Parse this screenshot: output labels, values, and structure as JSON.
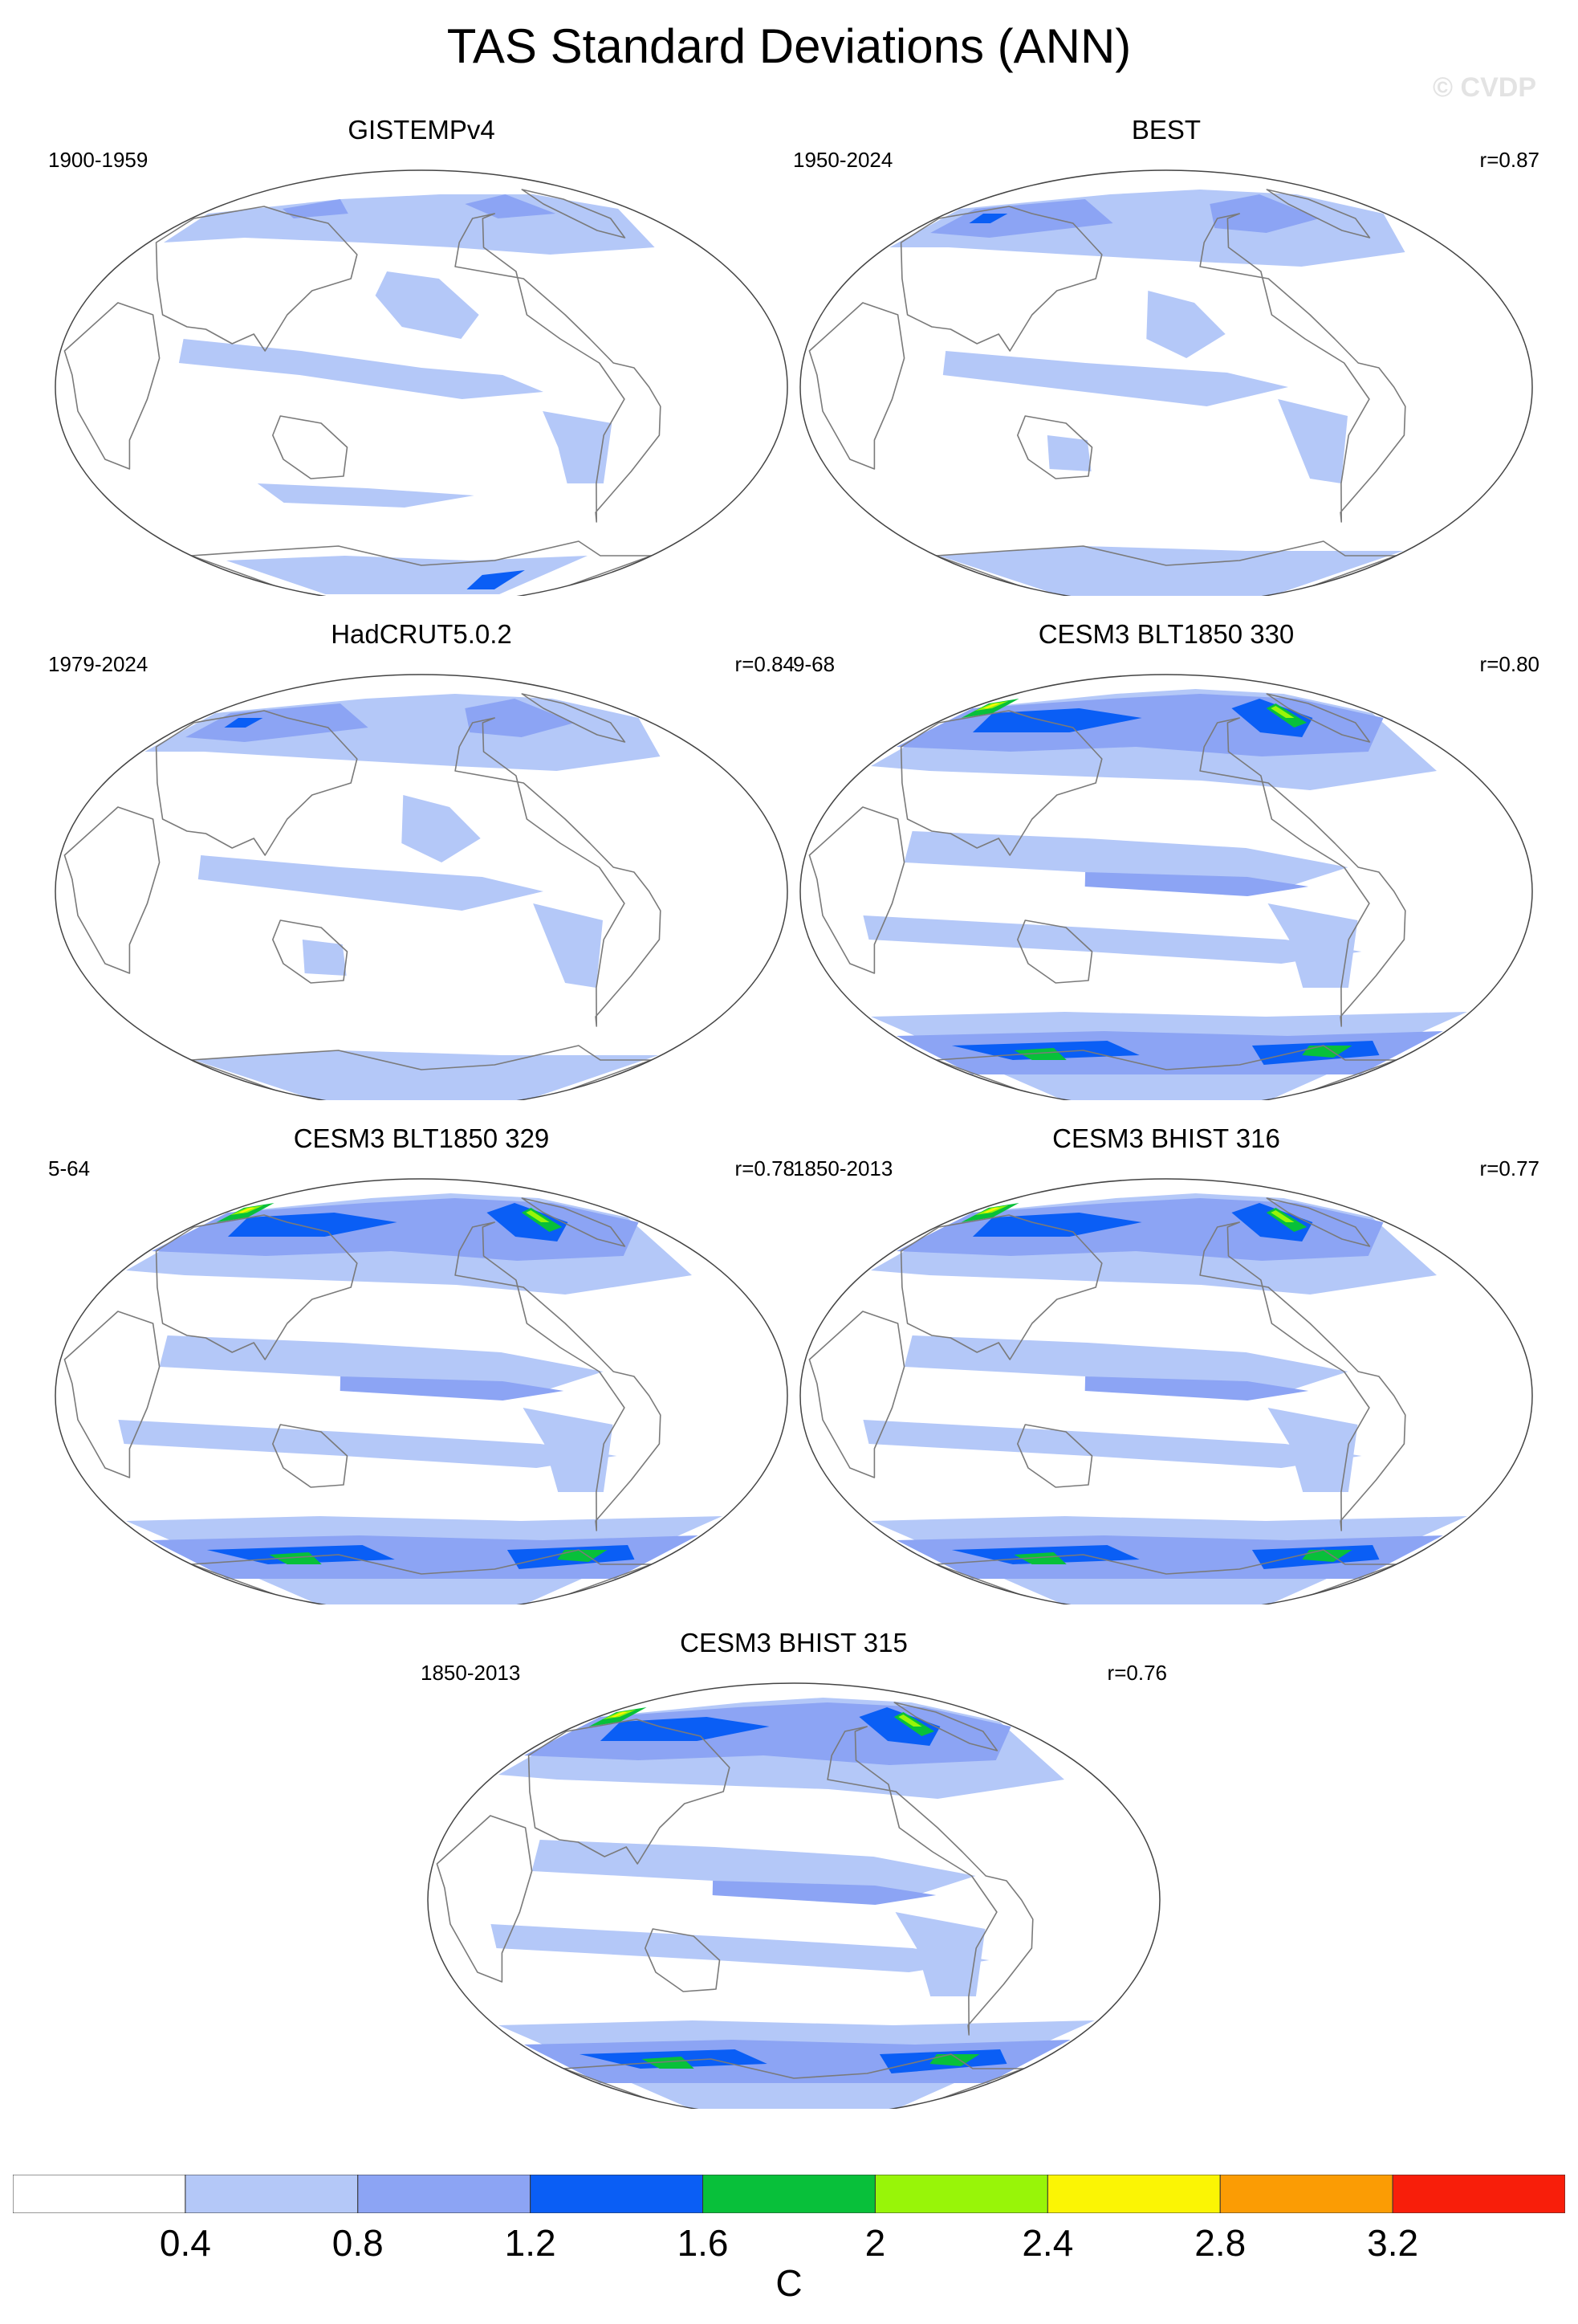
{
  "title": "TAS Standard Deviations (ANN)",
  "watermark": "© CVDP",
  "panels": [
    {
      "name": "GISTEMPv4",
      "period": "1900-1959",
      "r": ""
    },
    {
      "name": "BEST",
      "period": "1950-2024",
      "r": "r=0.87"
    },
    {
      "name": "HadCRUT5.0.2",
      "period": "1979-2024",
      "r": "r=0.84"
    },
    {
      "name": "CESM3 BLT1850 330",
      "period": "9-68",
      "r": "r=0.80"
    },
    {
      "name": "CESM3 BLT1850 329",
      "period": "5-64",
      "r": "r=0.78"
    },
    {
      "name": "CESM3 BHIST 316",
      "period": "1850-2013",
      "r": "r=0.77"
    },
    {
      "name": "CESM3 BHIST 315",
      "period": "1850-2013",
      "r": "r=0.76"
    }
  ],
  "colorbar": {
    "levels": [
      "0.4",
      "0.8",
      "1.2",
      "1.6",
      "2",
      "2.4",
      "2.8",
      "3.2"
    ],
    "colors": [
      "#ffffff",
      "#b4c8f8",
      "#8ca4f4",
      "#0a5ef5",
      "#08c03a",
      "#98f508",
      "#fbf504",
      "#fb9c04",
      "#f81e0a"
    ],
    "units": "C"
  },
  "chart_data": {
    "type": "heatmap",
    "variable": "TAS",
    "statistic": "Standard Deviations",
    "season": "ANN",
    "projection": "Robinson-like global map",
    "units": "C",
    "contour_levels": [
      0.4,
      0.8,
      1.2,
      1.6,
      2.0,
      2.4,
      2.8,
      3.2
    ],
    "panels": [
      {
        "name": "GISTEMPv4",
        "period": "1900-1959",
        "pattern_correlation": null,
        "max_level_reached": 1.6
      },
      {
        "name": "BEST",
        "period": "1950-2024",
        "pattern_correlation": 0.87,
        "max_level_reached": 1.2
      },
      {
        "name": "HadCRUT5.0.2",
        "period": "1979-2024",
        "pattern_correlation": 0.84,
        "max_level_reached": 1.2
      },
      {
        "name": "CESM3 BLT1850 330",
        "period": "9-68",
        "pattern_correlation": 0.8,
        "max_level_reached": 2.8
      },
      {
        "name": "CESM3 BLT1850 329",
        "period": "5-64",
        "pattern_correlation": 0.78,
        "max_level_reached": 2.8
      },
      {
        "name": "CESM3 BHIST 316",
        "period": "1850-2013",
        "pattern_correlation": 0.77,
        "max_level_reached": 3.2
      },
      {
        "name": "CESM3 BHIST 315",
        "period": "1850-2013",
        "pattern_correlation": 0.76,
        "max_level_reached": 2.8
      }
    ]
  }
}
